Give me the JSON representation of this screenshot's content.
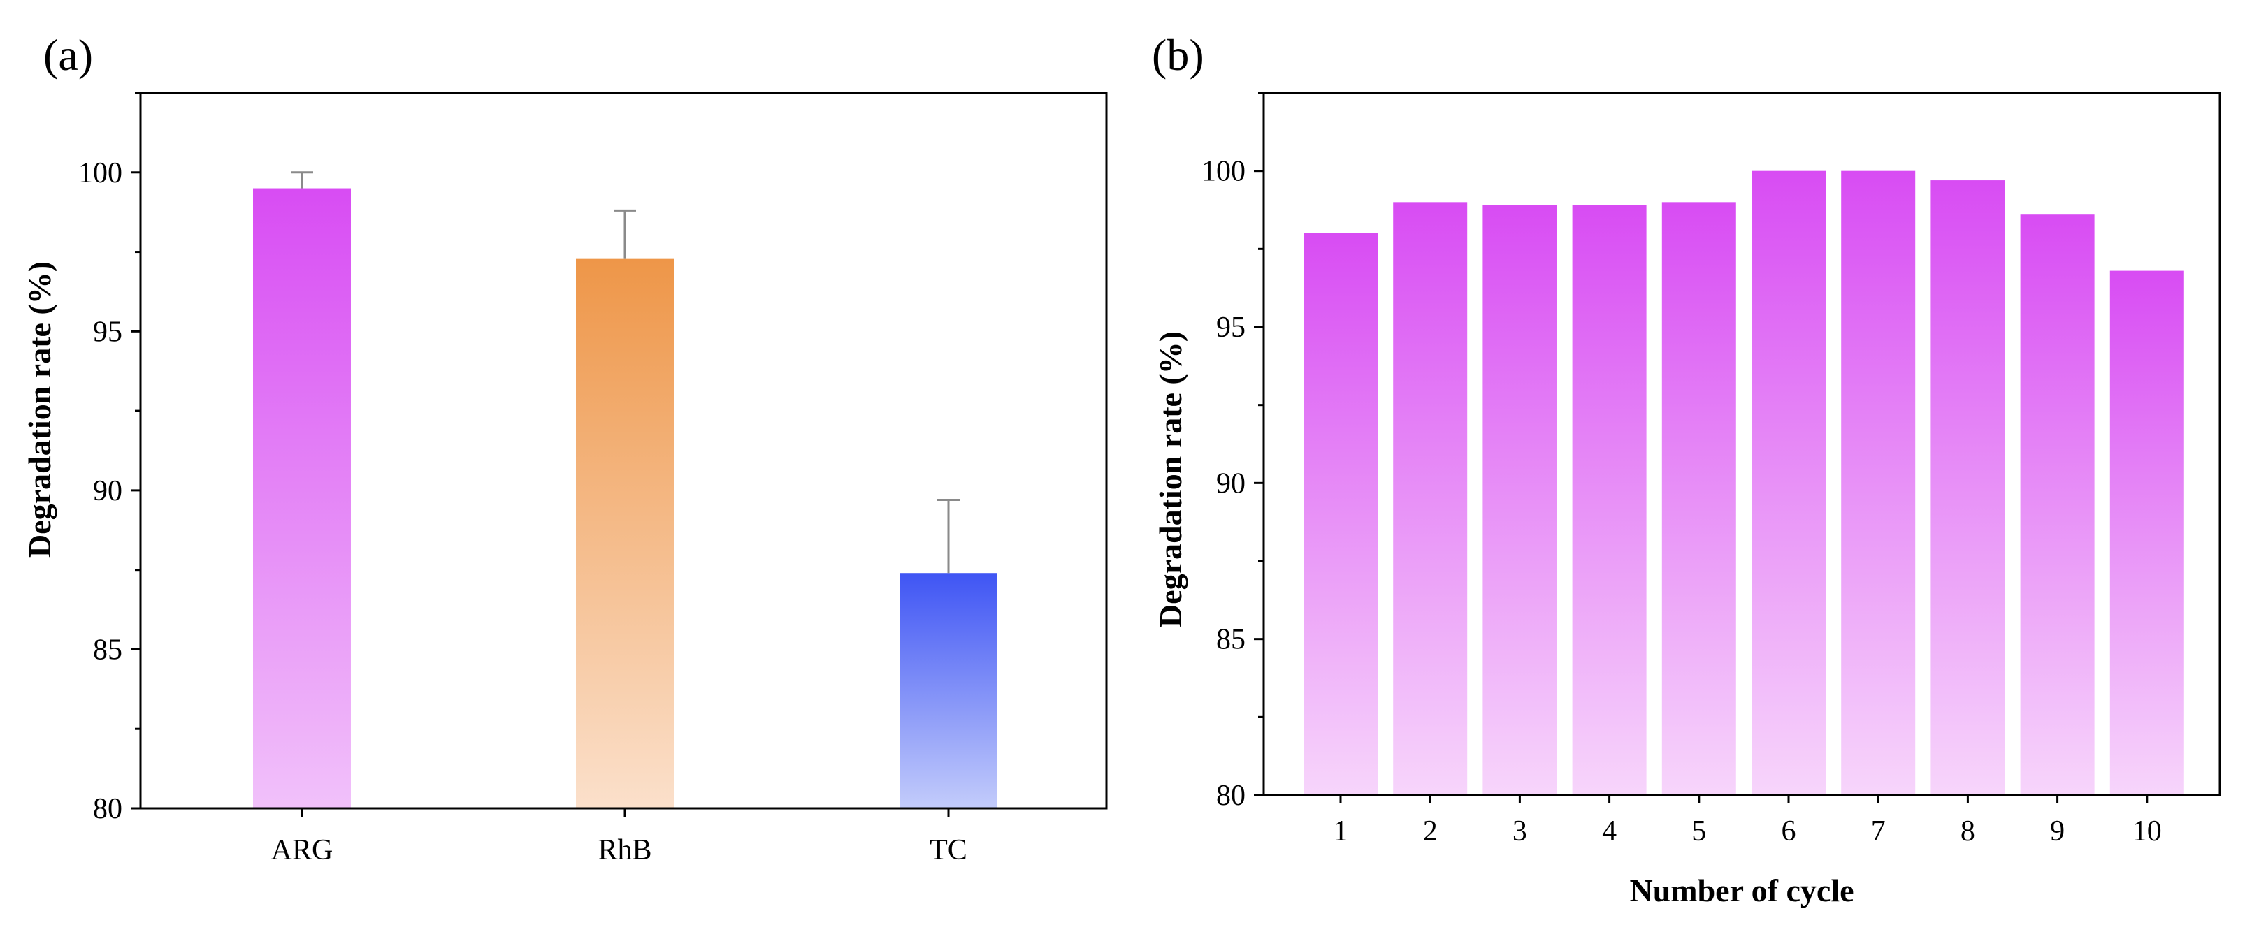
{
  "chart_data": [
    {
      "panel": "(a)",
      "type": "bar",
      "title": "",
      "categories": [
        "ARG",
        "RhB",
        "TC"
      ],
      "values": [
        99.5,
        97.3,
        87.4
      ],
      "errors": [
        0.5,
        1.5,
        2.3
      ],
      "colors": [
        [
          "#d84cf3",
          "#f1c1fa"
        ],
        [
          "#ee9648",
          "#fbe0cb"
        ],
        [
          "#3f55f4",
          "#c3ccfb"
        ]
      ],
      "xlabel": "",
      "ylabel": "Degradation rate (%)",
      "ylim": [
        80,
        102.5
      ],
      "yticks": [
        80,
        85,
        90,
        95,
        100
      ],
      "ytick_labels": [
        "80",
        "85",
        "90",
        "95",
        "100"
      ],
      "grid": false
    },
    {
      "panel": "(b)",
      "type": "bar",
      "title": "",
      "categories": [
        "1",
        "2",
        "3",
        "4",
        "5",
        "6",
        "7",
        "8",
        "9",
        "10"
      ],
      "values": [
        98.0,
        99.0,
        98.9,
        98.9,
        99.0,
        100.0,
        100.0,
        99.7,
        98.6,
        96.8
      ],
      "colors": [
        [
          "#d84cf3",
          "#f7d5fb"
        ]
      ],
      "xlabel": "Number of cycle",
      "ylabel": "Degradation rate (%)",
      "ylim": [
        80,
        102.5
      ],
      "yticks": [
        80,
        85,
        90,
        95,
        100
      ],
      "ytick_labels": [
        "80",
        "85",
        "90",
        "95",
        "100"
      ],
      "grid": false
    }
  ]
}
